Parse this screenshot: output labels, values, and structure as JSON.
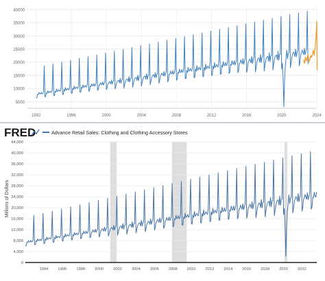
{
  "chart_data": [
    {
      "type": "line",
      "xlim": [
        1991,
        2024
      ],
      "ylim": [
        2500,
        41000
      ],
      "x_ticks": [
        1992,
        1996,
        2000,
        2004,
        2008,
        2012,
        2016,
        2020,
        2024
      ],
      "x_tick_labels": [
        "1992",
        "1996",
        "2000",
        "2004",
        "2008",
        "2012",
        "2016",
        "2020",
        "2024"
      ],
      "y_ticks": [
        5000,
        10000,
        15000,
        20000,
        25000,
        30000,
        35000,
        40000
      ],
      "y_tick_labels": [
        "5000",
        "10000",
        "15000",
        "20000",
        "25000",
        "30000",
        "35000",
        "40000"
      ],
      "grid": true,
      "series_colors": [
        "#3d7fbf",
        "#f0a030"
      ],
      "model": {
        "start": 1992.0,
        "end": 2023.0,
        "base_start": 7700,
        "base_end": 23500,
        "dec_start": 18000,
        "dec_end": 39500,
        "covid_low": 3000,
        "covid_year": 2020.25
      },
      "forecast": {
        "x": [
          2022.5,
          2022.6,
          2022.7,
          2022.8,
          2022.9,
          2023.0,
          2023.1,
          2023.2,
          2023.3,
          2023.4,
          2023.5,
          2023.6,
          2023.7,
          2023.8,
          2023.9,
          2024.0,
          2024.05
        ],
        "y": [
          21000,
          19500,
          22000,
          20500,
          21500,
          23000,
          20000,
          21000,
          22500,
          21800,
          23000,
          24500,
          22500,
          25000,
          29000,
          35500,
          17000
        ]
      }
    },
    {
      "type": "line",
      "title": "Advance Retail Sales: Clothing and Clothing Accessory Stores",
      "ylabel": "Millions of Dollars",
      "brand": "FRED",
      "xlim": [
        1992,
        2023.6
      ],
      "ylim": [
        0,
        44000
      ],
      "x_ticks": [
        1994,
        1996,
        1998,
        2000,
        2002,
        2004,
        2006,
        2008,
        2010,
        2012,
        2014,
        2016,
        2018,
        2020,
        2022
      ],
      "x_tick_labels": [
        "1994",
        "1996",
        "1998",
        "2000",
        "2002",
        "2004",
        "2006",
        "2008",
        "2010",
        "2012",
        "2014",
        "2016",
        "2018",
        "2020",
        "2022"
      ],
      "y_ticks": [
        0,
        4000,
        8000,
        12000,
        16000,
        20000,
        24000,
        28000,
        32000,
        36000,
        40000,
        44000
      ],
      "y_tick_labels": [
        "0",
        "4,000",
        "8,000",
        "12,000",
        "16,000",
        "20,000",
        "24,000",
        "28,000",
        "32,000",
        "36,000",
        "40,000",
        "44,000"
      ],
      "recessions": [
        [
          2001.2,
          2001.9
        ],
        [
          2007.9,
          2009.5
        ],
        [
          2020.1,
          2020.4
        ]
      ],
      "grid": true,
      "series_colors": [
        "#4572a7"
      ],
      "legend_swatch_color": "#4572a7",
      "model": {
        "start": 1992.0,
        "end": 2023.6,
        "base_start": 7200,
        "base_end": 24000,
        "dec_start": 16500,
        "dec_end": 41000,
        "covid_low": 2300,
        "covid_year": 2020.25
      }
    }
  ]
}
